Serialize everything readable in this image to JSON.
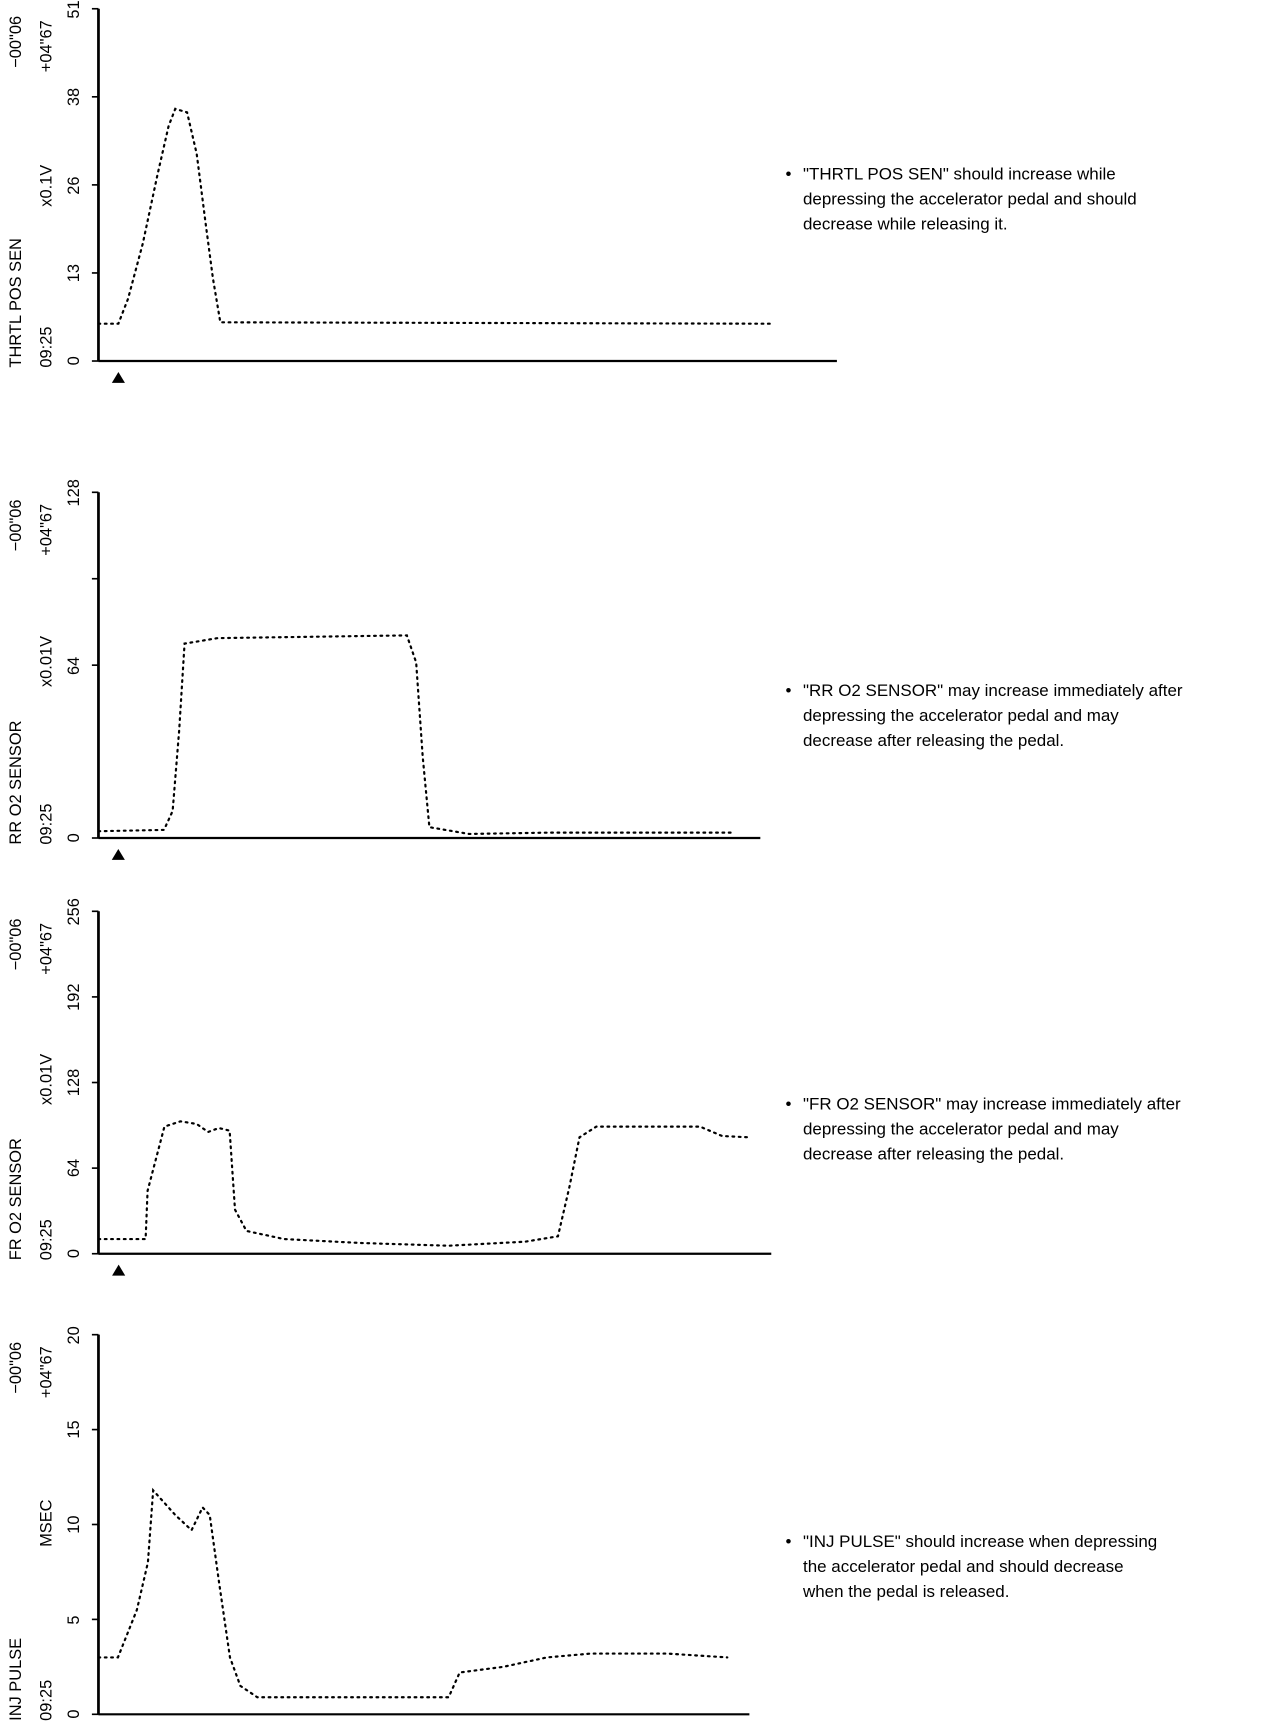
{
  "chart_data": [
    {
      "type": "line",
      "title": "THRTL POS SEN",
      "unit": "x0.1V",
      "time": "09:25",
      "cursor_minus": "−00\"06",
      "cursor_plus": "+04\"67",
      "ylim": [
        0,
        51
      ],
      "yticks": [
        0,
        12.75,
        25.5,
        38.25,
        51
      ],
      "tick_labels": [
        "0",
        "13",
        "26",
        "38",
        "51"
      ],
      "x_unit": "percent of time axis",
      "x": [
        0,
        2.7,
        4,
        6,
        8,
        9.5,
        10.4,
        12,
        13.3,
        14.5,
        15.5,
        16.5,
        91
      ],
      "y": [
        5.4,
        5.4,
        9,
        17,
        27,
        34,
        36.5,
        36,
        30,
        20,
        12,
        5.6,
        5.4
      ],
      "trigger_marker": 2.7,
      "note": [
        "\"THRTL POS SEN\" should increase while",
        "depressing the accelerator pedal and should",
        "decrease while releasing it."
      ]
    },
    {
      "type": "line",
      "title": "RR O2 SENSOR",
      "unit": "x0.01V",
      "time": "09:25",
      "cursor_minus": "−00\"06",
      "cursor_plus": "+04\"67",
      "ylim": [
        0,
        128
      ],
      "yticks": [
        0,
        64,
        96,
        128
      ],
      "tick_labels": [
        "0",
        "64",
        "",
        "128"
      ],
      "x_unit": "percent of time axis",
      "x": [
        0,
        9.9,
        11.2,
        12.2,
        13,
        18,
        46.6,
        48,
        49,
        50,
        56,
        68,
        96
      ],
      "y": [
        2.5,
        3,
        10,
        40,
        72,
        74,
        75,
        65,
        30,
        4,
        1.5,
        2,
        2
      ],
      "trigger_marker": 3,
      "note": [
        "\"RR O2 SENSOR\" may increase immediately after",
        "depressing the accelerator pedal and may",
        "decrease after releasing the pedal."
      ]
    },
    {
      "type": "line",
      "title": "FR O2 SENSOR",
      "unit": "x0.01V",
      "time": "09:25",
      "cursor_minus": "−00\"06",
      "cursor_plus": "+04\"67",
      "ylim": [
        0,
        256
      ],
      "yticks": [
        0,
        64,
        128,
        192,
        256
      ],
      "tick_labels": [
        "0",
        "64",
        "128",
        "192",
        "256"
      ],
      "x_unit": "percent of time axis",
      "x": [
        0,
        7,
        7.3,
        9.8,
        12.2,
        14.6,
        16.3,
        17.9,
        19.5,
        20.3,
        22,
        27.6,
        39,
        52,
        63.4,
        68.3,
        70,
        71.5,
        74,
        89.4,
        92.7,
        96.7
      ],
      "y": [
        11,
        11,
        47,
        95,
        99,
        97,
        91,
        94,
        92,
        33,
        17,
        11,
        8,
        6,
        9,
        13,
        50,
        87,
        95,
        95,
        88,
        87
      ],
      "trigger_marker": 3,
      "note": [
        "\"FR O2 SENSOR\" may increase immediately after",
        "depressing the accelerator pedal and may",
        "decrease after releasing the pedal."
      ]
    },
    {
      "type": "line",
      "title": "INJ PULSE",
      "unit": "MSEC",
      "time": "09:25",
      "cursor_minus": "−00\"06",
      "cursor_plus": "+04\"67",
      "ylim": [
        0,
        20
      ],
      "yticks": [
        0,
        5,
        10,
        15,
        20
      ],
      "tick_labels": [
        "0",
        "5",
        "10",
        "15",
        "20"
      ],
      "x_unit": "percent of time axis",
      "x": [
        0,
        3,
        5.9,
        7.6,
        8.4,
        11.8,
        14.3,
        16,
        17.1,
        18.5,
        20.2,
        21.8,
        24.4,
        53.8,
        55.5,
        62.2,
        68.9,
        75.6,
        87.4,
        96.6
      ],
      "y": [
        3,
        3,
        5.5,
        8,
        11.8,
        10.5,
        9.7,
        10.9,
        10.5,
        7,
        3,
        1.5,
        0.9,
        0.9,
        2.2,
        2.5,
        3.0,
        3.2,
        3.2,
        3.0
      ],
      "trigger_marker": 3,
      "note": [
        "\"INJ PULSE\" should increase when depressing",
        "the accelerator pedal and should decrease",
        "when the pedal is released."
      ]
    }
  ]
}
